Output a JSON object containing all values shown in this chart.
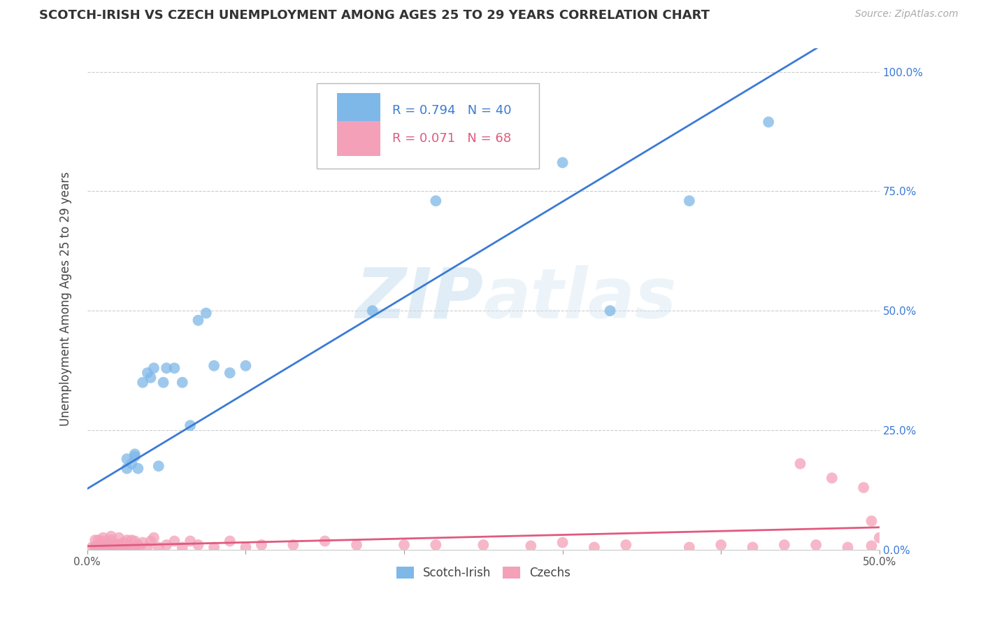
{
  "title": "SCOTCH-IRISH VS CZECH UNEMPLOYMENT AMONG AGES 25 TO 29 YEARS CORRELATION CHART",
  "source": "Source: ZipAtlas.com",
  "ylabel": "Unemployment Among Ages 25 to 29 years",
  "xmin": 0.0,
  "xmax": 0.5,
  "ymin": 0.0,
  "ymax": 1.05,
  "xticks": [
    0.0,
    0.1,
    0.2,
    0.3,
    0.4,
    0.5
  ],
  "xticklabels": [
    "0.0%",
    "",
    "",
    "",
    "",
    "50.0%"
  ],
  "yticks": [
    0.0,
    0.25,
    0.5,
    0.75,
    1.0
  ],
  "yticklabels_right": [
    "0.0%",
    "25.0%",
    "50.0%",
    "75.0%",
    "100.0%"
  ],
  "watermark": "ZIPatlas",
  "scotch_irish_R": "0.794",
  "scotch_irish_N": "40",
  "czech_R": "0.071",
  "czech_N": "68",
  "scotch_irish_color": "#7EB8E8",
  "czech_color": "#F4A0B8",
  "line_scotch_color": "#3A7BD5",
  "line_czech_color": "#E05A80",
  "scotch_irish_x": [
    0.005,
    0.007,
    0.008,
    0.01,
    0.01,
    0.012,
    0.013,
    0.015,
    0.017,
    0.018,
    0.02,
    0.022,
    0.025,
    0.025,
    0.028,
    0.03,
    0.03,
    0.032,
    0.035,
    0.038,
    0.04,
    0.042,
    0.045,
    0.048,
    0.05,
    0.055,
    0.06,
    0.065,
    0.07,
    0.075,
    0.08,
    0.09,
    0.1,
    0.18,
    0.2,
    0.22,
    0.3,
    0.33,
    0.38,
    0.43
  ],
  "scotch_irish_y": [
    0.005,
    0.01,
    0.005,
    0.005,
    0.01,
    0.008,
    0.005,
    0.005,
    0.005,
    0.01,
    0.008,
    0.005,
    0.17,
    0.19,
    0.18,
    0.195,
    0.2,
    0.17,
    0.35,
    0.37,
    0.36,
    0.38,
    0.175,
    0.35,
    0.38,
    0.38,
    0.35,
    0.26,
    0.48,
    0.495,
    0.385,
    0.37,
    0.385,
    0.5,
    0.81,
    0.73,
    0.81,
    0.5,
    0.73,
    0.895
  ],
  "czech_x": [
    0.003,
    0.005,
    0.005,
    0.007,
    0.007,
    0.008,
    0.01,
    0.01,
    0.01,
    0.01,
    0.012,
    0.013,
    0.013,
    0.015,
    0.015,
    0.015,
    0.017,
    0.018,
    0.02,
    0.02,
    0.02,
    0.022,
    0.023,
    0.025,
    0.025,
    0.025,
    0.027,
    0.028,
    0.03,
    0.03,
    0.032,
    0.033,
    0.035,
    0.038,
    0.04,
    0.042,
    0.045,
    0.05,
    0.055,
    0.06,
    0.065,
    0.07,
    0.08,
    0.09,
    0.1,
    0.11,
    0.13,
    0.15,
    0.17,
    0.2,
    0.22,
    0.25,
    0.28,
    0.3,
    0.32,
    0.34,
    0.38,
    0.4,
    0.42,
    0.44,
    0.45,
    0.46,
    0.47,
    0.48,
    0.49,
    0.495,
    0.495,
    0.5
  ],
  "czech_y": [
    0.005,
    0.003,
    0.02,
    0.005,
    0.02,
    0.005,
    0.003,
    0.008,
    0.018,
    0.025,
    0.005,
    0.003,
    0.015,
    0.01,
    0.02,
    0.028,
    0.005,
    0.01,
    0.005,
    0.012,
    0.025,
    0.005,
    0.015,
    0.003,
    0.01,
    0.02,
    0.005,
    0.02,
    0.005,
    0.018,
    0.01,
    0.005,
    0.015,
    0.005,
    0.018,
    0.025,
    0.005,
    0.01,
    0.018,
    0.005,
    0.018,
    0.01,
    0.005,
    0.018,
    0.005,
    0.01,
    0.01,
    0.018,
    0.01,
    0.01,
    0.01,
    0.01,
    0.008,
    0.015,
    0.005,
    0.01,
    0.005,
    0.01,
    0.005,
    0.01,
    0.18,
    0.01,
    0.15,
    0.005,
    0.13,
    0.008,
    0.06,
    0.025
  ]
}
